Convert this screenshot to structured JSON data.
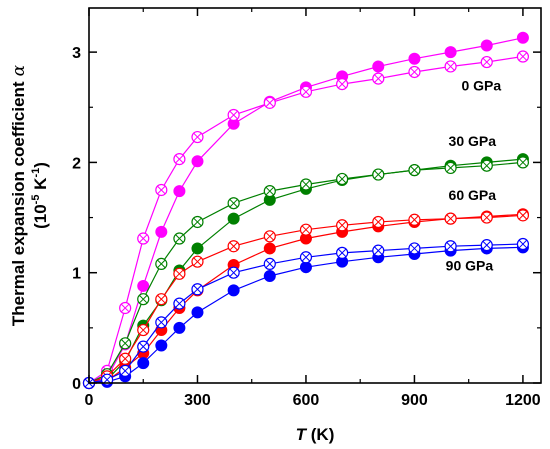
{
  "chart_data": {
    "type": "scatter",
    "xlabel": {
      "italic": "T",
      "rest": " (K)"
    },
    "ylabel": {
      "line1": "Thermal expansion coefficient",
      "symbol": "α",
      "line2_pre": "(10",
      "exp1": "-5",
      "line2_mid": " K",
      "exp2": "-1",
      "line2_post": ")"
    },
    "xlim": [
      0,
      1250
    ],
    "ylim": [
      0,
      3.4
    ],
    "x_ticks": [
      0,
      300,
      600,
      900,
      1200
    ],
    "y_ticks": [
      0,
      1,
      2,
      3
    ],
    "x_tick_labels": [
      "0",
      "300",
      "600",
      "900",
      "1200"
    ],
    "y_tick_labels": [
      "0",
      "1",
      "2",
      "3"
    ],
    "grid": false,
    "x": [
      0,
      50,
      100,
      150,
      200,
      250,
      300,
      400,
      500,
      600,
      700,
      800,
      900,
      1000,
      1100,
      1200
    ],
    "series": [
      {
        "name": "0 GPa",
        "color": "#ff00ff",
        "marker": "filled",
        "values": [
          0,
          0.05,
          0.35,
          0.88,
          1.37,
          1.74,
          2.01,
          2.35,
          2.55,
          2.68,
          2.78,
          2.87,
          2.94,
          3.0,
          3.06,
          3.13
        ]
      },
      {
        "name": "",
        "color": "#ff00ff",
        "marker": "crossed",
        "values": [
          0,
          0.11,
          0.68,
          1.31,
          1.75,
          2.03,
          2.23,
          2.43,
          2.54,
          2.64,
          2.71,
          2.76,
          2.82,
          2.87,
          2.91,
          2.96
        ]
      },
      {
        "name": "30 GPa",
        "color": "#008000",
        "marker": "filled",
        "values": [
          0,
          0.03,
          0.2,
          0.52,
          0.75,
          1.02,
          1.22,
          1.49,
          1.66,
          1.76,
          1.84,
          1.89,
          1.93,
          1.97,
          2.0,
          2.03
        ]
      },
      {
        "name": "",
        "color": "#008000",
        "marker": "crossed",
        "values": [
          0,
          0.08,
          0.36,
          0.76,
          1.08,
          1.31,
          1.46,
          1.63,
          1.74,
          1.8,
          1.85,
          1.89,
          1.93,
          1.95,
          1.97,
          2.0
        ]
      },
      {
        "name": "60 GPa",
        "color": "#ff0000",
        "marker": "filled",
        "values": [
          0,
          0.02,
          0.14,
          0.27,
          0.48,
          0.68,
          0.84,
          1.07,
          1.22,
          1.31,
          1.37,
          1.42,
          1.46,
          1.49,
          1.51,
          1.53
        ]
      },
      {
        "name": "",
        "color": "#ff0000",
        "marker": "crossed",
        "values": [
          0,
          0.06,
          0.22,
          0.48,
          0.76,
          0.99,
          1.1,
          1.24,
          1.33,
          1.39,
          1.43,
          1.46,
          1.48,
          1.49,
          1.5,
          1.52
        ]
      },
      {
        "name": "90 GPa",
        "color": "#0000ff",
        "marker": "filled",
        "values": [
          0,
          0.01,
          0.06,
          0.18,
          0.34,
          0.5,
          0.64,
          0.84,
          0.97,
          1.05,
          1.1,
          1.14,
          1.17,
          1.2,
          1.22,
          1.23
        ]
      },
      {
        "name": "",
        "color": "#0000ff",
        "marker": "crossed",
        "values": [
          0,
          0.03,
          0.11,
          0.33,
          0.55,
          0.72,
          0.85,
          1.0,
          1.08,
          1.14,
          1.18,
          1.2,
          1.22,
          1.24,
          1.25,
          1.26
        ]
      }
    ],
    "annotations": [
      {
        "text": "0 GPa",
        "x": 1085,
        "y": 2.65
      },
      {
        "text": "30 GPa",
        "x": 1060,
        "y": 2.15
      },
      {
        "text": "60 GPa",
        "x": 1060,
        "y": 1.66
      },
      {
        "text": "90 GPa",
        "x": 1052,
        "y": 1.02
      }
    ]
  }
}
